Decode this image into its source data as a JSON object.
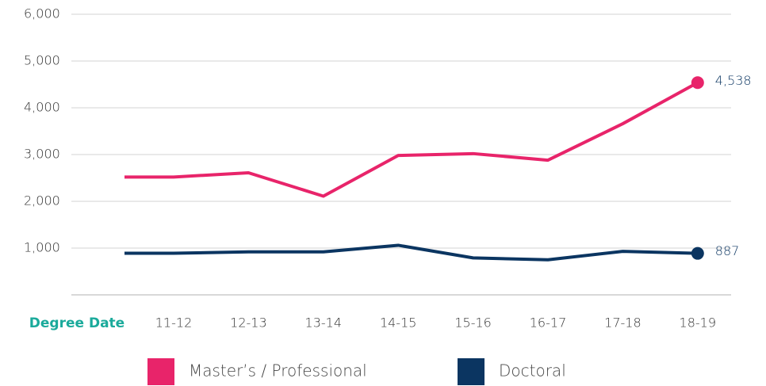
{
  "chart_data": {
    "type": "line",
    "x_label": "Degree Date",
    "categories": [
      null,
      "11-12",
      "12-13",
      "13-14",
      "14-15",
      "15-16",
      "16-17",
      "17-18",
      "18-19"
    ],
    "series": [
      {
        "name": "Master’s / Professional",
        "color": "#e8246a",
        "values": [
          2520,
          2520,
          2610,
          2110,
          2980,
          3020,
          2880,
          3660,
          4538
        ],
        "value_labels": [
          null,
          null,
          null,
          null,
          null,
          null,
          null,
          null,
          "4,538"
        ]
      },
      {
        "name": "Doctoral",
        "color": "#0b3561",
        "values": [
          890,
          890,
          920,
          920,
          1060,
          790,
          750,
          930,
          887
        ]
      }
    ],
    "ylim": [
      0,
      6000
    ],
    "yticks": [
      {
        "value": 1000,
        "label": "1,000"
      },
      {
        "value": 2000,
        "label": "2,000"
      },
      {
        "value": 3000,
        "label": "3,000"
      },
      {
        "value": 4000,
        "label": "4,000"
      },
      {
        "value": 5000,
        "label": "5,000"
      },
      {
        "value": 6000,
        "label": "6,000"
      }
    ],
    "grid": true,
    "legend": "bottom"
  }
}
